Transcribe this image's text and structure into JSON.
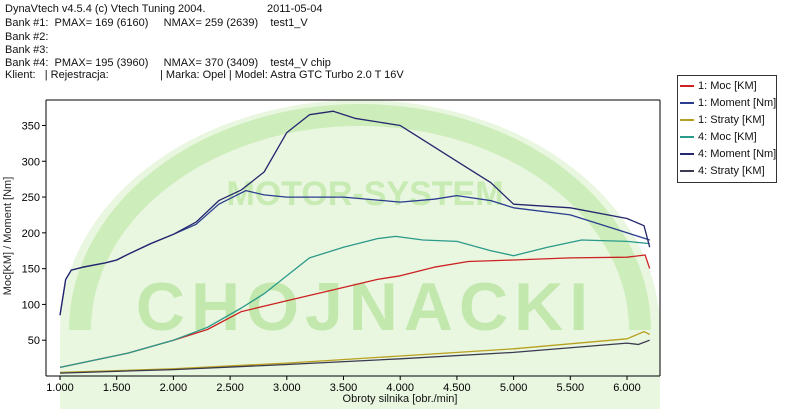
{
  "header": {
    "line1_app": "DynaVtech v4.5.4 (c) Vtech Tuning 2004.",
    "line1_date": "2011-05-04",
    "bank1": "Bank #1:  PMAX= 169 (6160)     NMAX= 259 (2639)    test1_V",
    "bank2": "Bank #2:",
    "bank3": "Bank #3:",
    "bank4": "Bank #4:  PMAX= 195 (3960)     NMAX= 370 (3409)    test4_V chip",
    "client_left": "Klient:   | Rejestracja:",
    "client_right": "| Marka: Opel | Model: Astra GTC Turbo 2.0 T 16V"
  },
  "watermark": {
    "text": "CHOJNACKI",
    "arc_text": "MOTOR-SYSTEM",
    "color": "#bfe8a8"
  },
  "chart_data": {
    "type": "line",
    "xlabel": "Obroty silnika [obr./min]",
    "ylabel": "Moc[KM] / Moment [Nm]",
    "xlim": [
      1000,
      6300
    ],
    "ylim": [
      0,
      380
    ],
    "xticks": [
      1000,
      1500,
      2000,
      2500,
      3000,
      3500,
      4000,
      4500,
      5000,
      5500,
      6000
    ],
    "xtick_labels": [
      "1.000",
      "1.500",
      "2.000",
      "2.500",
      "3.000",
      "3.500",
      "4.000",
      "4.500",
      "5.000",
      "5.500",
      "6.000"
    ],
    "yticks": [
      50,
      100,
      150,
      200,
      250,
      300,
      350
    ],
    "ytick_labels": [
      "50",
      "100",
      "150",
      "200",
      "250",
      "300",
      "350"
    ],
    "legend_position": "top-right",
    "series": [
      {
        "name": "1:  Moc [KM]",
        "color": "#cc2222",
        "x": [
          1000,
          1300,
          1600,
          2000,
          2300,
          2600,
          3000,
          3400,
          3800,
          4000,
          4300,
          4600,
          5000,
          5500,
          6000,
          6160,
          6200
        ],
        "y": [
          12,
          22,
          32,
          50,
          65,
          90,
          105,
          120,
          135,
          140,
          152,
          160,
          162,
          165,
          166,
          169,
          150
        ]
      },
      {
        "name": "1:  Moment [Nm]",
        "color": "#2a3d8f",
        "x": [
          1000,
          1050,
          1100,
          1200,
          1400,
          1500,
          1600,
          1800,
          2000,
          2200,
          2400,
          2639,
          2800,
          3000,
          3500,
          4000,
          4300,
          4500,
          4800,
          5000,
          5500,
          6000,
          6200
        ],
        "y": [
          85,
          135,
          148,
          152,
          158,
          162,
          170,
          185,
          198,
          212,
          240,
          259,
          253,
          250,
          250,
          243,
          247,
          252,
          245,
          235,
          225,
          200,
          190
        ]
      },
      {
        "name": "1:  Straty [KM]",
        "color": "#b8a020",
        "x": [
          1000,
          2000,
          3000,
          4000,
          5000,
          6000,
          6150,
          6200
        ],
        "y": [
          5,
          10,
          18,
          28,
          38,
          52,
          62,
          58
        ]
      },
      {
        "name": "4:  Moc [KM]",
        "color": "#2a9a8a",
        "x": [
          1000,
          1300,
          1600,
          2000,
          2300,
          2600,
          2800,
          3000,
          3200,
          3500,
          3800,
          3960,
          4200,
          4500,
          4800,
          5000,
          5300,
          5600,
          6000,
          6200
        ],
        "y": [
          12,
          22,
          32,
          50,
          68,
          95,
          115,
          140,
          165,
          180,
          192,
          195,
          190,
          188,
          175,
          168,
          180,
          190,
          188,
          185
        ]
      },
      {
        "name": "4:  Moment [Nm]",
        "color": "#25276e",
        "x": [
          1000,
          1050,
          1100,
          1200,
          1400,
          1500,
          1600,
          1800,
          2000,
          2200,
          2400,
          2600,
          2800,
          3000,
          3200,
          3409,
          3600,
          3800,
          4000,
          4200,
          4500,
          4800,
          5000,
          5500,
          6000,
          6150,
          6200
        ],
        "y": [
          85,
          135,
          148,
          152,
          158,
          162,
          170,
          185,
          198,
          215,
          245,
          260,
          285,
          340,
          365,
          370,
          360,
          355,
          350,
          330,
          300,
          270,
          240,
          235,
          220,
          210,
          180
        ]
      },
      {
        "name": "4:  Straty [KM]",
        "color": "#3a3a50",
        "x": [
          1000,
          2000,
          3000,
          4000,
          5000,
          6000,
          6100,
          6200
        ],
        "y": [
          4,
          9,
          16,
          24,
          33,
          46,
          44,
          50
        ]
      }
    ]
  }
}
